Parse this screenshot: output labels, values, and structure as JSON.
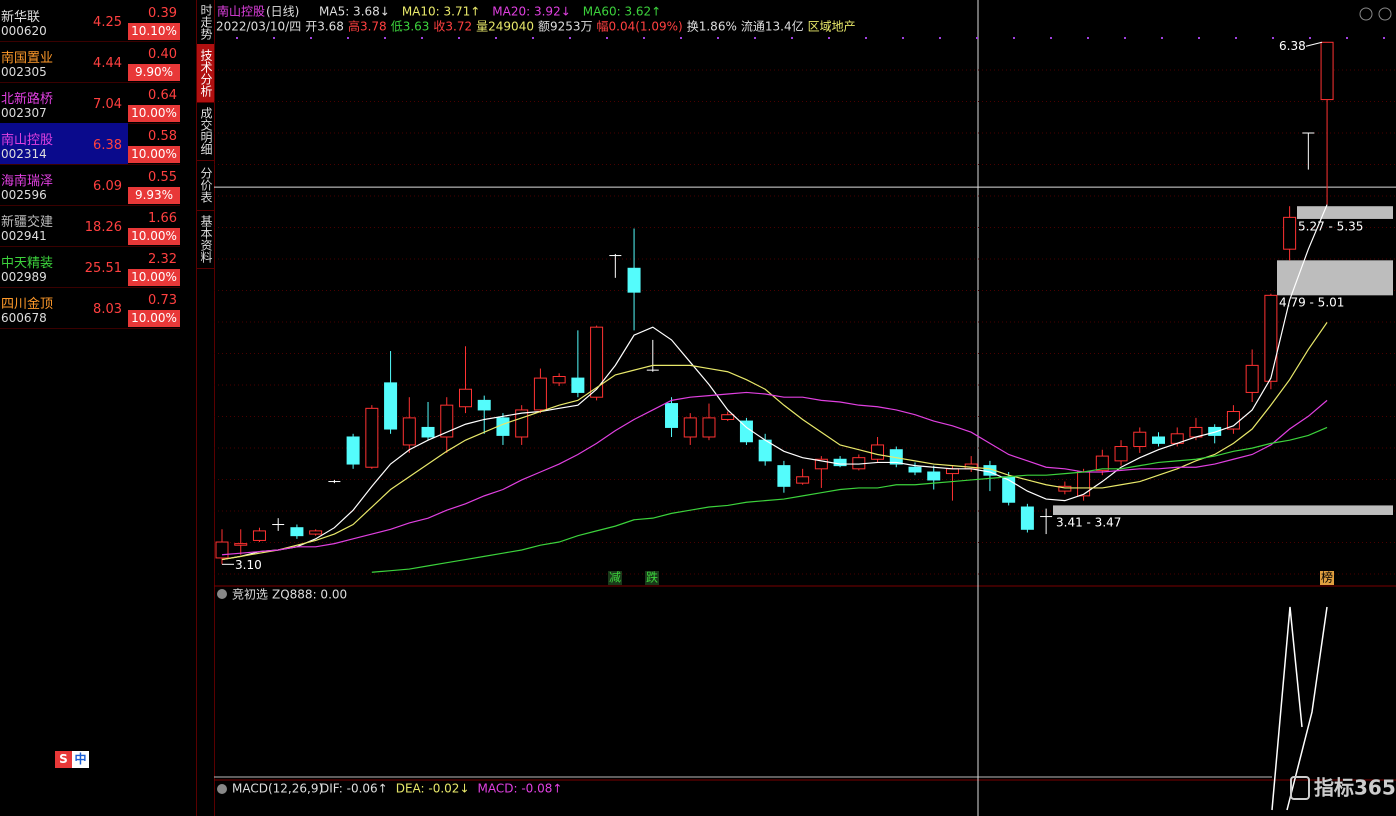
{
  "watchlist": [
    {
      "name": "新华联",
      "code": "000620",
      "price": "4.25",
      "change": "0.39",
      "pct": "10.10%"
    },
    {
      "name": "南国置业",
      "code": "002305",
      "price": "4.44",
      "change": "0.40",
      "pct": "9.90%"
    },
    {
      "name": "北新路桥",
      "code": "002307",
      "price": "7.04",
      "change": "0.64",
      "pct": "10.00%"
    },
    {
      "name": "南山控股",
      "code": "002314",
      "price": "6.38",
      "change": "0.58",
      "pct": "10.00%"
    },
    {
      "name": "海南瑞泽",
      "code": "002596",
      "price": "6.09",
      "change": "0.55",
      "pct": "9.93%"
    },
    {
      "name": "新疆交建",
      "code": "002941",
      "price": "18.26",
      "change": "1.66",
      "pct": "10.00%"
    },
    {
      "name": "中天精装",
      "code": "002989",
      "price": "25.51",
      "change": "2.32",
      "pct": "10.00%"
    },
    {
      "name": "四川金顶",
      "code": "600678",
      "price": "8.03",
      "change": "0.73",
      "pct": "10.00%"
    }
  ],
  "tabs": [
    "时走势",
    "技术分析",
    "成交明细",
    "分价表",
    "基本资料"
  ],
  "header": {
    "title": "南山控股",
    "period": "(日线)",
    "ma": [
      "MA5: 3.68↓",
      "MA10: 3.71↑",
      "MA20: 3.92↓",
      "MA60: 3.62↑"
    ],
    "info": [
      "2022/03/10/四",
      "开3.68",
      "高3.78",
      "低3.63",
      "收3.72",
      "量249040",
      "额9253万",
      "幅0.04(1.09%)",
      "换1.86%",
      "流通13.4亿",
      "区域地产"
    ]
  },
  "chart_data": {
    "type": "candlestick",
    "ylim": [
      2.97,
      6.52
    ],
    "up_color": "#ff3232",
    "down_color": "#54fcfc",
    "candles": [
      [
        3.14,
        3.32,
        3.1,
        3.24
      ],
      [
        3.22,
        3.32,
        3.16,
        3.23
      ],
      [
        3.25,
        3.33,
        3.24,
        3.31
      ],
      [
        3.35,
        3.39,
        3.31,
        3.35
      ],
      [
        3.33,
        3.35,
        3.26,
        3.28
      ],
      [
        3.29,
        3.32,
        3.28,
        3.31
      ],
      [
        3.62,
        3.63,
        3.61,
        3.62
      ],
      [
        3.9,
        3.92,
        3.7,
        3.73
      ],
      [
        3.71,
        4.1,
        3.7,
        4.08
      ],
      [
        4.24,
        4.44,
        3.92,
        3.95
      ],
      [
        3.85,
        4.15,
        3.8,
        4.02
      ],
      [
        3.96,
        4.12,
        3.88,
        3.9
      ],
      [
        3.9,
        4.15,
        3.8,
        4.1
      ],
      [
        4.09,
        4.47,
        4.05,
        4.2
      ],
      [
        4.13,
        4.16,
        3.92,
        4.07
      ],
      [
        4.02,
        4.05,
        3.85,
        3.91
      ],
      [
        3.9,
        4.1,
        3.85,
        4.07
      ],
      [
        4.07,
        4.33,
        4.05,
        4.27
      ],
      [
        4.24,
        4.3,
        4.22,
        4.28
      ],
      [
        4.27,
        4.57,
        4.15,
        4.18
      ],
      [
        4.15,
        4.6,
        4.13,
        4.59
      ],
      [
        5.04,
        5.05,
        4.9,
        5.04
      ],
      [
        4.96,
        5.21,
        4.57,
        4.81
      ],
      [
        4.32,
        4.51,
        4.31,
        4.32
      ],
      [
        4.11,
        4.15,
        3.9,
        3.96
      ],
      [
        3.9,
        4.05,
        3.85,
        4.02
      ],
      [
        3.9,
        4.11,
        3.88,
        4.02
      ],
      [
        4.01,
        4.06,
        4.0,
        4.04
      ],
      [
        4.0,
        4.02,
        3.85,
        3.87
      ],
      [
        3.88,
        3.92,
        3.72,
        3.75
      ],
      [
        3.72,
        3.75,
        3.55,
        3.59
      ],
      [
        3.61,
        3.7,
        3.6,
        3.65
      ],
      [
        3.7,
        3.78,
        3.58,
        3.76
      ],
      [
        3.76,
        3.78,
        3.71,
        3.72
      ],
      [
        3.7,
        3.79,
        3.69,
        3.77
      ],
      [
        3.76,
        3.9,
        3.74,
        3.85
      ],
      [
        3.82,
        3.84,
        3.71,
        3.73
      ],
      [
        3.71,
        3.74,
        3.66,
        3.68
      ],
      [
        3.68,
        3.72,
        3.57,
        3.63
      ],
      [
        3.67,
        3.72,
        3.5,
        3.7
      ],
      [
        3.7,
        3.78,
        3.68,
        3.73
      ],
      [
        3.72,
        3.75,
        3.56,
        3.66
      ],
      [
        3.65,
        3.68,
        3.47,
        3.49
      ],
      [
        3.46,
        3.48,
        3.3,
        3.32
      ],
      [
        3.4,
        3.45,
        3.29,
        3.4
      ],
      [
        3.56,
        3.62,
        3.54,
        3.59
      ],
      [
        3.53,
        3.7,
        3.5,
        3.68
      ],
      [
        3.69,
        3.82,
        3.66,
        3.78
      ],
      [
        3.75,
        3.88,
        3.72,
        3.84
      ],
      [
        3.84,
        3.96,
        3.8,
        3.93
      ],
      [
        3.9,
        3.93,
        3.84,
        3.86
      ],
      [
        3.86,
        3.96,
        3.84,
        3.92
      ],
      [
        3.9,
        4.02,
        3.88,
        3.96
      ],
      [
        3.96,
        3.98,
        3.86,
        3.91
      ],
      [
        3.95,
        4.1,
        3.92,
        4.06
      ],
      [
        4.18,
        4.45,
        4.12,
        4.35
      ],
      [
        4.25,
        4.8,
        4.2,
        4.79
      ],
      [
        5.08,
        5.35,
        5.01,
        5.28
      ],
      [
        5.81,
        5.81,
        5.58,
        5.81
      ],
      [
        6.02,
        6.38,
        5.36,
        6.38
      ]
    ],
    "series": [
      {
        "name": "MA5",
        "color": "#ffffff",
        "values": [
          3.13,
          3.15,
          3.18,
          3.19,
          3.21,
          3.26,
          3.33,
          3.44,
          3.59,
          3.73,
          3.82,
          3.88,
          3.93,
          3.98,
          4.01,
          4.03,
          4.05,
          4.06,
          4.08,
          4.1,
          4.2,
          4.35,
          4.54,
          4.59,
          4.51,
          4.37,
          4.23,
          4.07,
          3.96,
          3.88,
          3.81,
          3.77,
          3.75,
          3.73,
          3.73,
          3.74,
          3.74,
          3.72,
          3.71,
          3.7,
          3.7,
          3.68,
          3.63,
          3.56,
          3.51,
          3.5,
          3.54,
          3.62,
          3.71,
          3.77,
          3.82,
          3.86,
          3.9,
          3.93,
          3.97,
          4.07,
          4.27,
          4.76,
          5.08,
          5.36
        ]
      },
      {
        "name": "MA10",
        "color": "#e8e86a",
        "values": [
          3.13,
          3.15,
          3.17,
          3.19,
          3.22,
          3.25,
          3.29,
          3.35,
          3.46,
          3.57,
          3.65,
          3.73,
          3.81,
          3.88,
          3.93,
          3.98,
          4.02,
          4.06,
          4.1,
          4.13,
          4.21,
          4.29,
          4.32,
          4.35,
          4.35,
          4.35,
          4.33,
          4.31,
          4.26,
          4.2,
          4.1,
          4.01,
          3.93,
          3.85,
          3.82,
          3.79,
          3.77,
          3.75,
          3.73,
          3.72,
          3.71,
          3.7,
          3.66,
          3.63,
          3.6,
          3.58,
          3.58,
          3.58,
          3.6,
          3.62,
          3.66,
          3.7,
          3.75,
          3.79,
          3.86,
          3.95,
          4.1,
          4.26,
          4.45,
          4.62
        ]
      },
      {
        "name": "MA20",
        "color": "#e040e0",
        "values": [
          3.16,
          3.17,
          3.18,
          3.19,
          3.21,
          3.21,
          3.23,
          3.26,
          3.29,
          3.32,
          3.36,
          3.39,
          3.44,
          3.48,
          3.53,
          3.57,
          3.63,
          3.68,
          3.73,
          3.79,
          3.86,
          3.94,
          4.01,
          4.07,
          4.13,
          4.15,
          4.16,
          4.17,
          4.18,
          4.17,
          4.15,
          4.15,
          4.13,
          4.12,
          4.1,
          4.09,
          4.07,
          4.04,
          4.0,
          3.97,
          3.93,
          3.86,
          3.79,
          3.75,
          3.71,
          3.7,
          3.68,
          3.68,
          3.69,
          3.7,
          3.7,
          3.71,
          3.71,
          3.73,
          3.76,
          3.79,
          3.85,
          3.95,
          4.03,
          4.13
        ]
      },
      {
        "name": "MA60",
        "color": "#3cd23c",
        "values": [
          null,
          null,
          null,
          null,
          null,
          null,
          null,
          null,
          3.05,
          3.06,
          3.07,
          3.09,
          3.11,
          3.13,
          3.15,
          3.17,
          3.19,
          3.22,
          3.24,
          3.28,
          3.31,
          3.34,
          3.38,
          3.39,
          3.42,
          3.44,
          3.46,
          3.47,
          3.49,
          3.5,
          3.51,
          3.53,
          3.55,
          3.57,
          3.58,
          3.58,
          3.6,
          3.6,
          3.61,
          3.62,
          3.63,
          3.64,
          3.65,
          3.66,
          3.66,
          3.67,
          3.68,
          3.7,
          3.7,
          3.72,
          3.74,
          3.75,
          3.76,
          3.78,
          3.81,
          3.83,
          3.86,
          3.88,
          3.91,
          3.96
        ]
      }
    ],
    "zones": [
      {
        "low": 5.27,
        "high": 5.35,
        "label": "5.27 - 5.35"
      },
      {
        "low": 4.79,
        "high": 5.01,
        "label": "4.79 - 5.01"
      },
      {
        "low": 3.41,
        "high": 3.47,
        "label": "3.41 - 3.47"
      }
    ],
    "high_label": {
      "value": 6.38,
      "label": "6.38"
    },
    "low_label": {
      "value": 3.1,
      "label": "3.10"
    },
    "crosshair": 5.47,
    "signals": [
      "减",
      "跌",
      "榜"
    ]
  },
  "indicator": {
    "title": "竞初选",
    "text": "ZQ888: 0.00"
  },
  "macd": {
    "title": "MACD(12,26,9)",
    "items": [
      "DIF: -0.06↑",
      "DEA: -0.02↓",
      "MACD: -0.08↑"
    ]
  },
  "logo": "指标365",
  "badge": [
    "S",
    "中"
  ]
}
